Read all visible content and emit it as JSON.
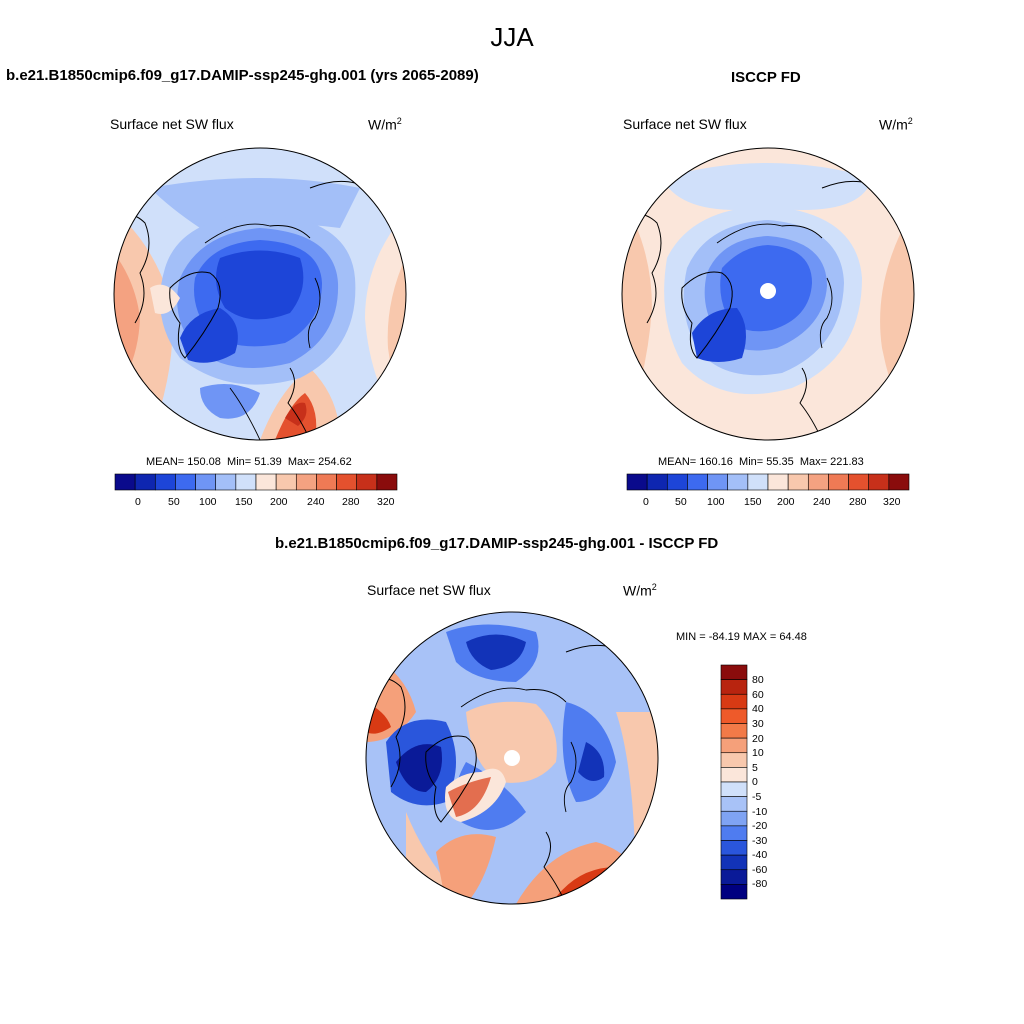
{
  "figure": {
    "season": "JJA"
  },
  "panels": [
    {
      "title": "b.e21.B1850cmip6.f09_g17.DAMIP-ssp245-ghg.001 (yrs 2065-2089)",
      "variable": "Surface net SW flux",
      "units_base": "W/m",
      "units_exp": "2",
      "stats": {
        "mean": "MEAN= 150.08",
        "min": "Min=  51.39",
        "max": "Max= 254.62"
      }
    },
    {
      "title": "ISCCP FD",
      "variable": "Surface net SW flux",
      "units_base": "W/m",
      "units_exp": "2",
      "stats": {
        "mean": "MEAN= 160.16",
        "min": "Min=  55.35",
        "max": "Max= 221.83"
      }
    },
    {
      "title": "b.e21.B1850cmip6.f09_g17.DAMIP-ssp245-ghg.001 - ISCCP FD",
      "variable": "Surface net SW flux",
      "units_base": "W/m",
      "units_exp": "2",
      "stats": {
        "minmax": "MIN = -84.19 MAX =  64.48"
      }
    }
  ],
  "colorbar_abs": {
    "ticks": [
      "0",
      "50",
      "100",
      "150",
      "200",
      "240",
      "280",
      "320"
    ],
    "colors": [
      "#0a0a8c",
      "#0e26b0",
      "#1d45d8",
      "#3d6af0",
      "#6f95f5",
      "#a3bff8",
      "#d0e0fa",
      "#fbe6da",
      "#f8c8ad",
      "#f4a281",
      "#ef7a55",
      "#e4512e",
      "#c7301a",
      "#8a0c0c"
    ]
  },
  "colorbar_diff": {
    "ticks": [
      "80",
      "60",
      "40",
      "30",
      "20",
      "10",
      "5",
      "0",
      "-5",
      "-10",
      "-20",
      "-30",
      "-40",
      "-60",
      "-80"
    ],
    "colors": [
      "#8a0c0c",
      "#b8240f",
      "#d83a14",
      "#ee5a2a",
      "#f27a48",
      "#f5a07a",
      "#f8c8ad",
      "#fbe6da",
      "#d0e0fa",
      "#a8c2f7",
      "#7fa3f3",
      "#4f7cf0",
      "#2a56dc",
      "#1233b8",
      "#0a1a98",
      "#000080"
    ]
  },
  "map_colors": {
    "deep_blue": "#1d45d8",
    "mid_blue": "#3d6af0",
    "light_blue": "#6f95f5",
    "pale_blue": "#a3bff8",
    "very_pale_blue": "#d0e0fa",
    "pale_orange": "#fbe6da",
    "light_orange": "#f8c8ad",
    "orange": "#f4a281",
    "dark_orange": "#e4512e",
    "red": "#c7301a"
  }
}
